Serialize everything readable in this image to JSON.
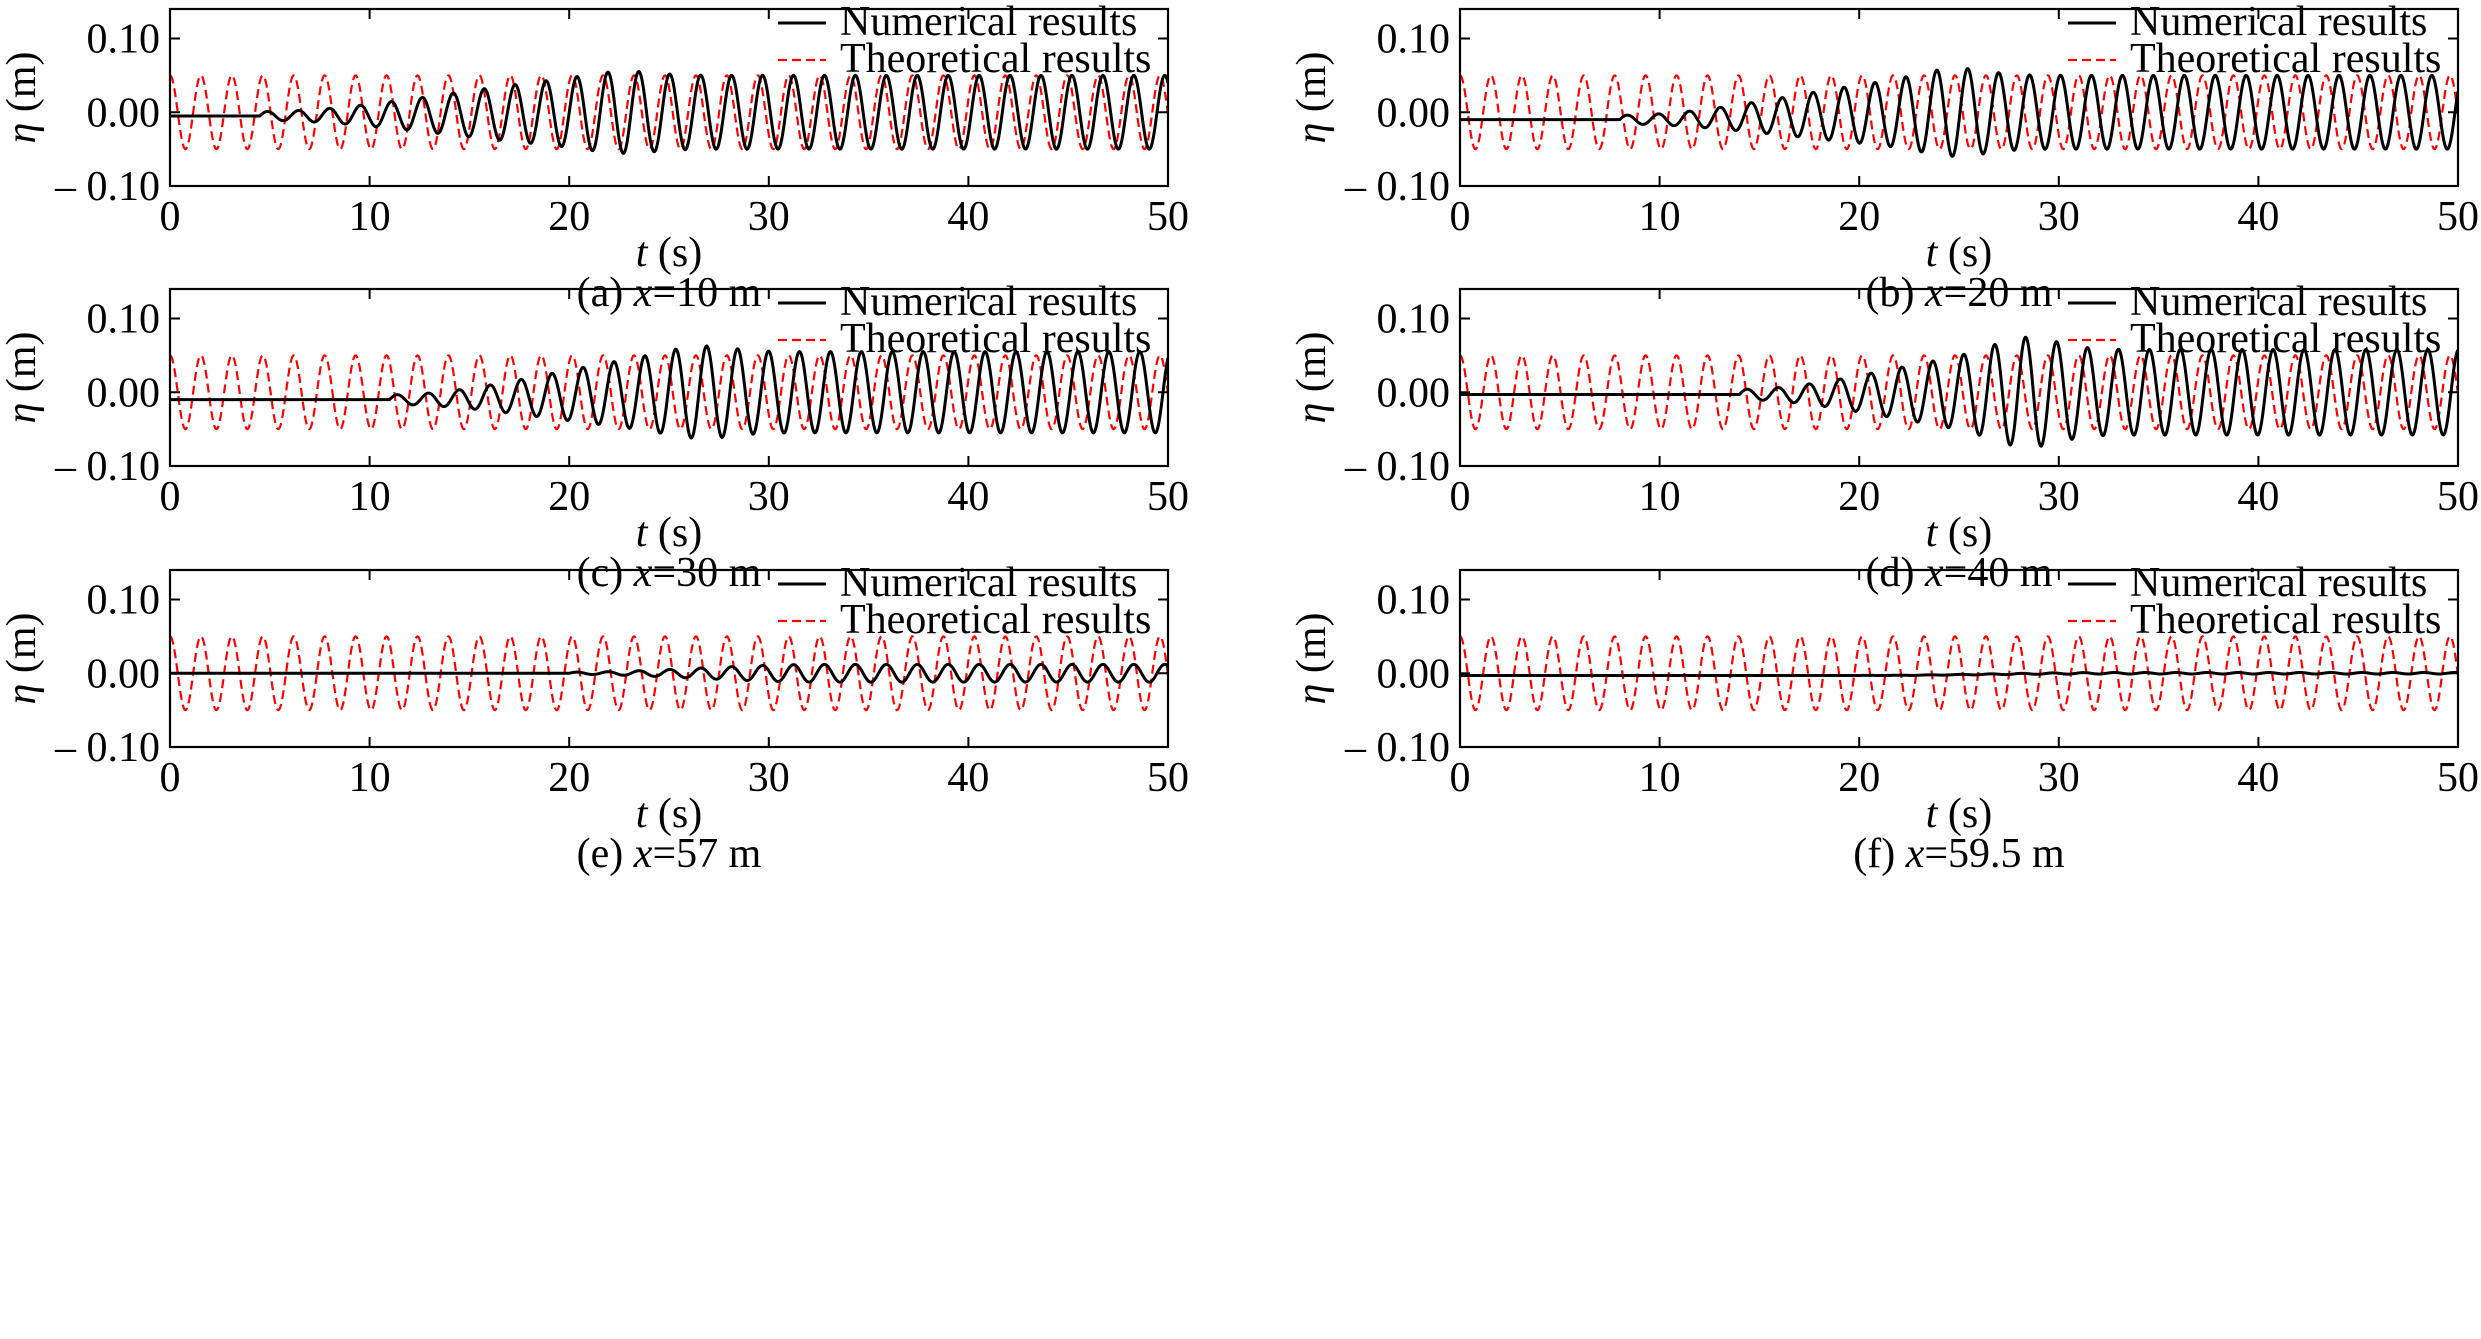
{
  "figure": {
    "axis_labels": {
      "y_symbol": "η",
      "y_unit": "(m)",
      "x_symbol": "t",
      "x_unit": "(s)"
    },
    "legend": [
      "Numerical results",
      "Theoretical results"
    ],
    "colors": {
      "numerical": "#000000",
      "theoretical": "#ff0000"
    }
  },
  "chart_data": [
    {
      "type": "line",
      "caption": "(a) x=10 m",
      "caption_prefix": "(a) ",
      "caption_var": "x",
      "caption_value": "=10 m",
      "xlim": [
        0,
        50
      ],
      "ylim": [
        -0.1,
        0.14
      ],
      "xticks": [
        "0",
        "10",
        "20",
        "30",
        "40",
        "50"
      ],
      "yticks": [
        "0.10",
        "0.00",
        "– 0.10"
      ],
      "ytick_values": [
        0.1,
        0.0,
        -0.1
      ],
      "grid": false,
      "legend_position": "top-right",
      "series": [
        {
          "name": "Numerical results",
          "style": "solid",
          "arrival_time_s": 4.5,
          "baseline_m": -0.005,
          "steady_amplitude_m": 0.05,
          "peak_m": 0.056,
          "trough_m": -0.06
        },
        {
          "name": "Theoretical results",
          "style": "dashed",
          "amplitude_m": 0.05,
          "period_s": 1.55
        }
      ]
    },
    {
      "type": "line",
      "caption": "(b) x=20 m",
      "caption_prefix": "(b) ",
      "caption_var": "x",
      "caption_value": "=20 m",
      "xlim": [
        0,
        50
      ],
      "ylim": [
        -0.1,
        0.14
      ],
      "xticks": [
        "0",
        "10",
        "20",
        "30",
        "40",
        "50"
      ],
      "yticks": [
        "0.10",
        "0.00",
        "– 0.10"
      ],
      "ytick_values": [
        0.1,
        0.0,
        -0.1
      ],
      "grid": false,
      "legend_position": "top-right",
      "series": [
        {
          "name": "Numerical results",
          "style": "solid",
          "arrival_time_s": 8,
          "baseline_m": -0.01,
          "steady_amplitude_m": 0.05,
          "peak_m": 0.06,
          "trough_m": -0.065
        },
        {
          "name": "Theoretical results",
          "style": "dashed",
          "amplitude_m": 0.05,
          "period_s": 1.55
        }
      ]
    },
    {
      "type": "line",
      "caption": "(c) x=30 m",
      "caption_prefix": "(c) ",
      "caption_var": "x",
      "caption_value": "=30 m",
      "xlim": [
        0,
        50
      ],
      "ylim": [
        -0.1,
        0.14
      ],
      "xticks": [
        "0",
        "10",
        "20",
        "30",
        "40",
        "50"
      ],
      "yticks": [
        "0.10",
        "0.00",
        "– 0.10"
      ],
      "ytick_values": [
        0.1,
        0.0,
        -0.1
      ],
      "grid": false,
      "legend_position": "top-right",
      "series": [
        {
          "name": "Numerical results",
          "style": "solid",
          "arrival_time_s": 11,
          "baseline_m": -0.01,
          "steady_amplitude_m": 0.055,
          "peak_m": 0.063,
          "trough_m": -0.068
        },
        {
          "name": "Theoretical results",
          "style": "dashed",
          "amplitude_m": 0.05,
          "period_s": 1.55
        }
      ]
    },
    {
      "type": "line",
      "caption": "(d) x=40 m",
      "caption_prefix": "(d) ",
      "caption_var": "x",
      "caption_value": "=40 m",
      "xlim": [
        0,
        50
      ],
      "ylim": [
        -0.1,
        0.14
      ],
      "xticks": [
        "0",
        "10",
        "20",
        "30",
        "40",
        "50"
      ],
      "yticks": [
        "0.10",
        "0.00",
        "– 0.10"
      ],
      "ytick_values": [
        0.1,
        0.0,
        -0.1
      ],
      "grid": false,
      "legend_position": "top-right",
      "series": [
        {
          "name": "Numerical results",
          "style": "solid",
          "arrival_time_s": 14,
          "baseline_m": -0.003,
          "steady_amplitude_m": 0.058,
          "peak_m": 0.075,
          "trough_m": -0.065
        },
        {
          "name": "Theoretical results",
          "style": "dashed",
          "amplitude_m": 0.05,
          "period_s": 1.55
        }
      ]
    },
    {
      "type": "line",
      "caption": "(e) x=57 m",
      "caption_prefix": "(e) ",
      "caption_var": "x",
      "caption_value": "=57 m",
      "xlim": [
        0,
        50
      ],
      "ylim": [
        -0.1,
        0.14
      ],
      "xticks": [
        "0",
        "10",
        "20",
        "30",
        "40",
        "50"
      ],
      "yticks": [
        "0.10",
        "0.00",
        "– 0.10"
      ],
      "ytick_values": [
        0.1,
        0.0,
        -0.1
      ],
      "grid": false,
      "legend_position": "top-right",
      "series": [
        {
          "name": "Numerical results",
          "style": "solid",
          "arrival_time_s": 20,
          "baseline_m": 0.0,
          "steady_amplitude_m": 0.012,
          "peak_m": 0.012,
          "trough_m": -0.012
        },
        {
          "name": "Theoretical results",
          "style": "dashed",
          "amplitude_m": 0.05,
          "period_s": 1.55
        }
      ]
    },
    {
      "type": "line",
      "caption": "(f) x=59.5 m",
      "caption_prefix": "(f) ",
      "caption_var": "x",
      "caption_value": "=59.5 m",
      "xlim": [
        0,
        50
      ],
      "ylim": [
        -0.1,
        0.14
      ],
      "xticks": [
        "0",
        "10",
        "20",
        "30",
        "40",
        "50"
      ],
      "yticks": [
        "0.10",
        "0.00",
        "– 0.10"
      ],
      "ytick_values": [
        0.1,
        0.0,
        -0.1
      ],
      "grid": false,
      "legend_position": "top-right",
      "series": [
        {
          "name": "Numerical results",
          "style": "solid",
          "arrival_time_s": 20,
          "baseline_m": -0.003,
          "steady_amplitude_m": 0.001,
          "peak_m": 0.001,
          "trough_m": -0.004
        },
        {
          "name": "Theoretical results",
          "style": "dashed",
          "amplitude_m": 0.05,
          "period_s": 1.55
        }
      ]
    }
  ]
}
